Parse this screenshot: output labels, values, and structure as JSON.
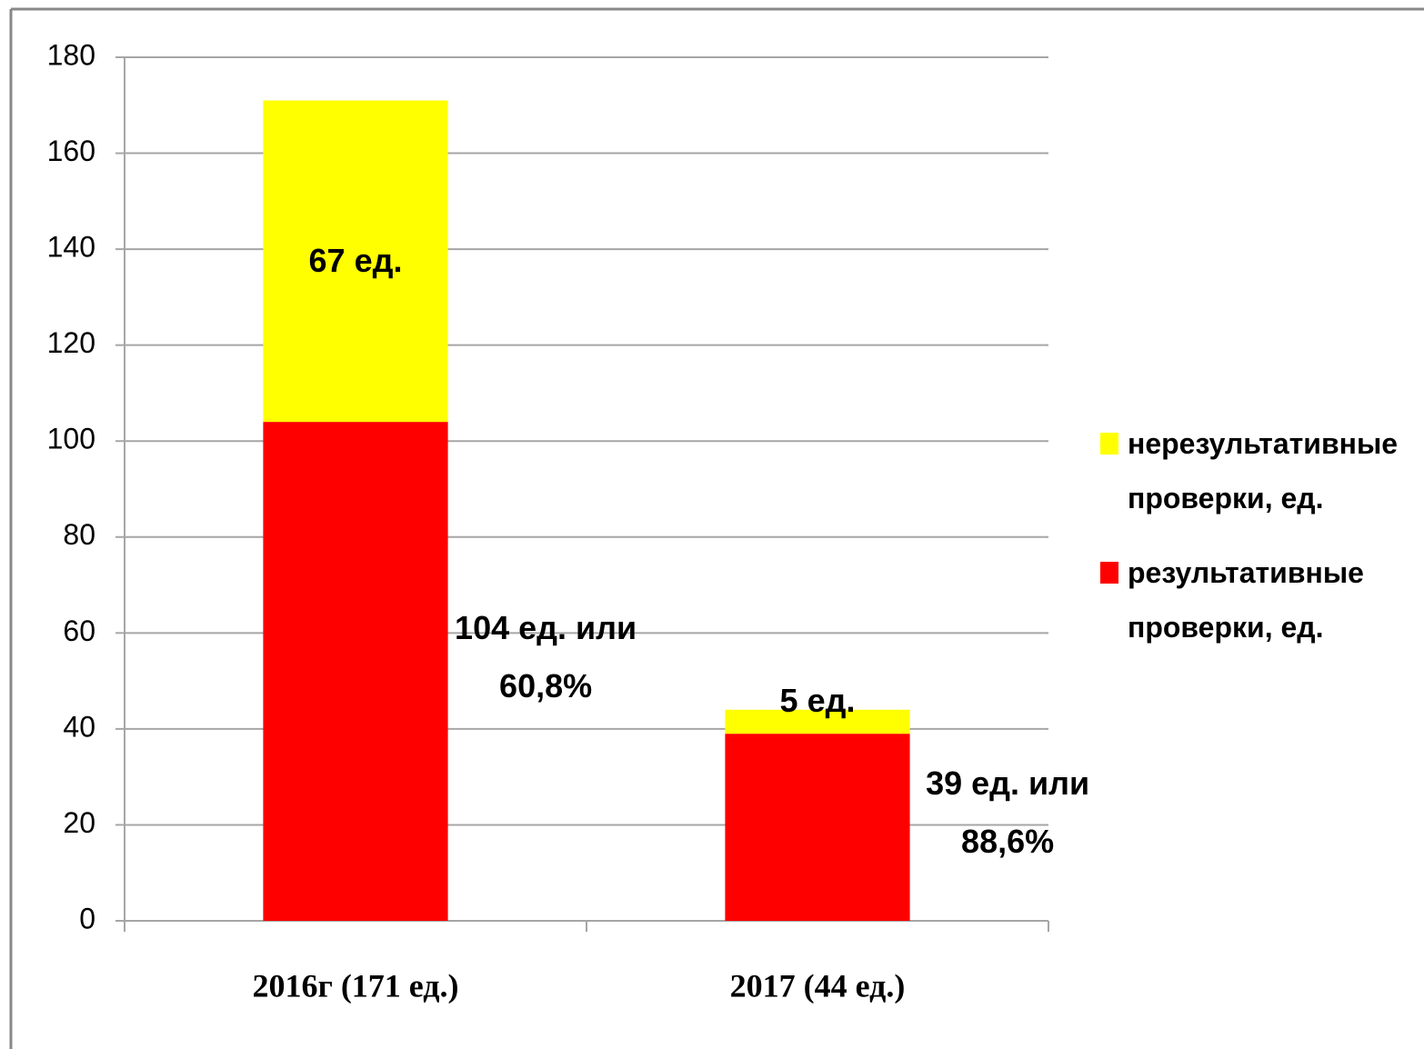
{
  "chart_data": {
    "type": "stacked_bar",
    "categories": [
      "2016г (171 ед.)",
      "2017 (44 ед.)"
    ],
    "series": [
      {
        "name": "результативные проверки, ед.",
        "color": "#ff0000",
        "values": [
          104,
          39
        ],
        "value_labels": [
          "104 ед. или 60,8%",
          "39 ед. или 88,6%"
        ]
      },
      {
        "name": "нерезультативные проверки, ед.",
        "color": "#ffff00",
        "values": [
          67,
          5
        ],
        "value_labels": [
          "67 ед.",
          "5 ед."
        ]
      }
    ],
    "ylim": [
      0,
      180
    ],
    "yticks": [
      0,
      20,
      40,
      60,
      80,
      100,
      120,
      140,
      160,
      180
    ],
    "grid": true,
    "legend": "right"
  }
}
